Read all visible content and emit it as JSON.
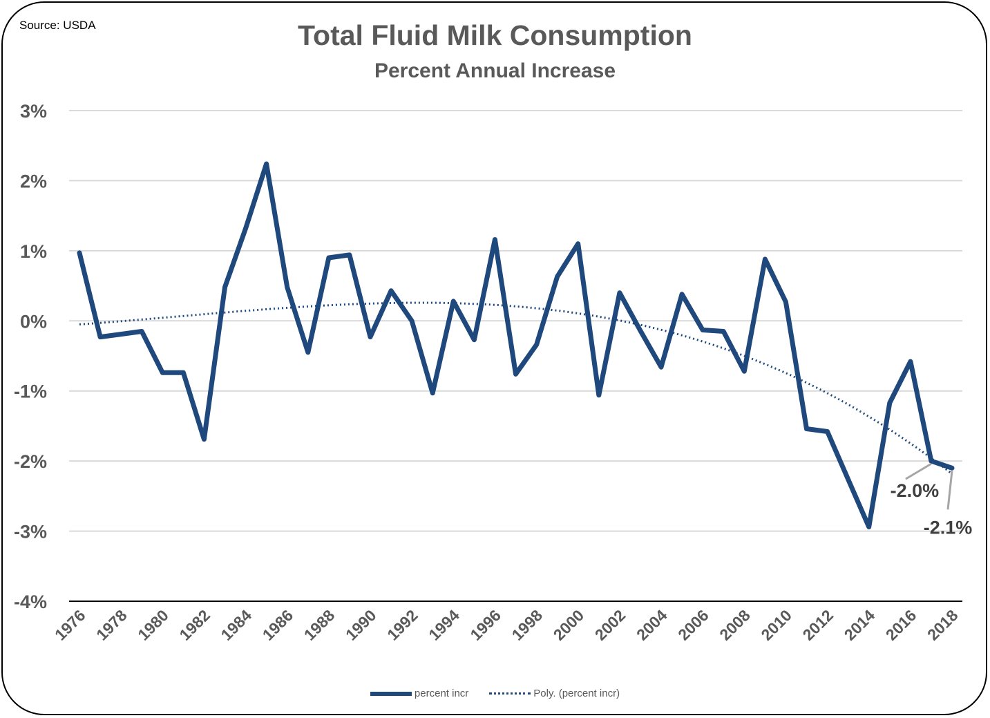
{
  "chart_data": {
    "type": "line",
    "source": "Source: USDA",
    "title": "Total Fluid Milk Consumption",
    "subtitle": "Percent Annual Increase",
    "xlabel": "",
    "ylabel": "",
    "ylim": [
      -4,
      3
    ],
    "y_ticks": [
      "3%",
      "2%",
      "1%",
      "0%",
      "-1%",
      "-2%",
      "-3%",
      "-4%"
    ],
    "x_ticks": [
      "1976",
      "1978",
      "1980",
      "1982",
      "1984",
      "1986",
      "1988",
      "1990",
      "1992",
      "1994",
      "1996",
      "1998",
      "2000",
      "2002",
      "2004",
      "2006",
      "2008",
      "2010",
      "2012",
      "2014",
      "2016",
      "2018"
    ],
    "grid": true,
    "legend_position": "bottom",
    "x": [
      1976,
      1977,
      1978,
      1979,
      1980,
      1981,
      1982,
      1983,
      1984,
      1985,
      1986,
      1987,
      1988,
      1989,
      1990,
      1991,
      1992,
      1993,
      1994,
      1995,
      1996,
      1997,
      1998,
      1999,
      2000,
      2001,
      2002,
      2003,
      2004,
      2005,
      2006,
      2007,
      2008,
      2009,
      2010,
      2011,
      2012,
      2013,
      2014,
      2015,
      2016,
      2017,
      2018
    ],
    "series": [
      {
        "name": "percent incr",
        "color": "#1f497d",
        "values": [
          0.97,
          -0.23,
          -0.19,
          -0.15,
          -0.74,
          -0.74,
          -1.69,
          0.48,
          1.32,
          2.24,
          0.48,
          -0.45,
          0.9,
          0.94,
          -0.23,
          0.43,
          0.0,
          -1.03,
          0.28,
          -0.27,
          1.16,
          -0.76,
          -0.34,
          0.63,
          1.1,
          -1.06,
          0.4,
          -0.14,
          -0.66,
          0.38,
          -0.13,
          -0.15,
          -0.72,
          0.88,
          0.27,
          -1.54,
          -1.58,
          -2.26,
          -2.94,
          -1.17,
          -0.58,
          -2.0,
          -2.1
        ]
      },
      {
        "name": "Poly. (percent incr)",
        "color": "#1f497d",
        "style": "dotted",
        "trendline": "polynomial"
      }
    ],
    "annotations": [
      {
        "x": 2017,
        "label": "-2.0%"
      },
      {
        "x": 2018,
        "label": "-2.1%"
      }
    ]
  }
}
